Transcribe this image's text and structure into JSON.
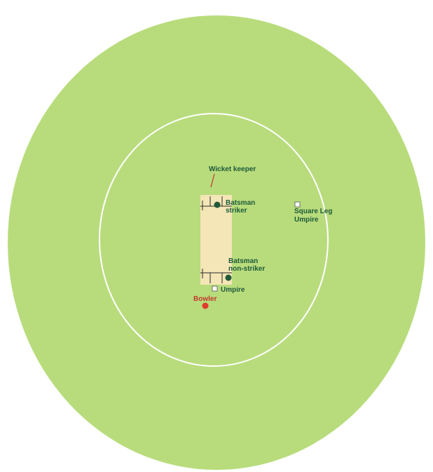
{
  "colors": {
    "outfield": "#b8dc7c",
    "boundary_ring": "#ffffff",
    "pitch": "#f4e6b6",
    "crease_lines": "#2a2a2a",
    "label_green": "#1e5a3a",
    "label_red": "#c0392b",
    "batsman_dot": "#1e5a3a",
    "bowler_dot": "#e03b2e",
    "umpire_box_fill": "#ffffff",
    "umpire_box_stroke": "#555555"
  },
  "labels": {
    "wicket_keeper": "Wicket keeper",
    "batsman_striker_line1": "Batsman",
    "batsman_striker_line2": "striker",
    "batsman_nonstriker_line1": "Batsman",
    "batsman_nonstriker_line2": "non-striker",
    "umpire": "Umpire",
    "square_leg_line1": "Square Leg",
    "square_leg_line2": "Umpire",
    "bowler": "Bowler"
  },
  "markers": {
    "batsman_striker": "filled-circle",
    "batsman_nonstriker": "filled-circle",
    "bowler": "filled-circle",
    "umpire": "square-icon",
    "square_leg_umpire": "square-icon"
  }
}
